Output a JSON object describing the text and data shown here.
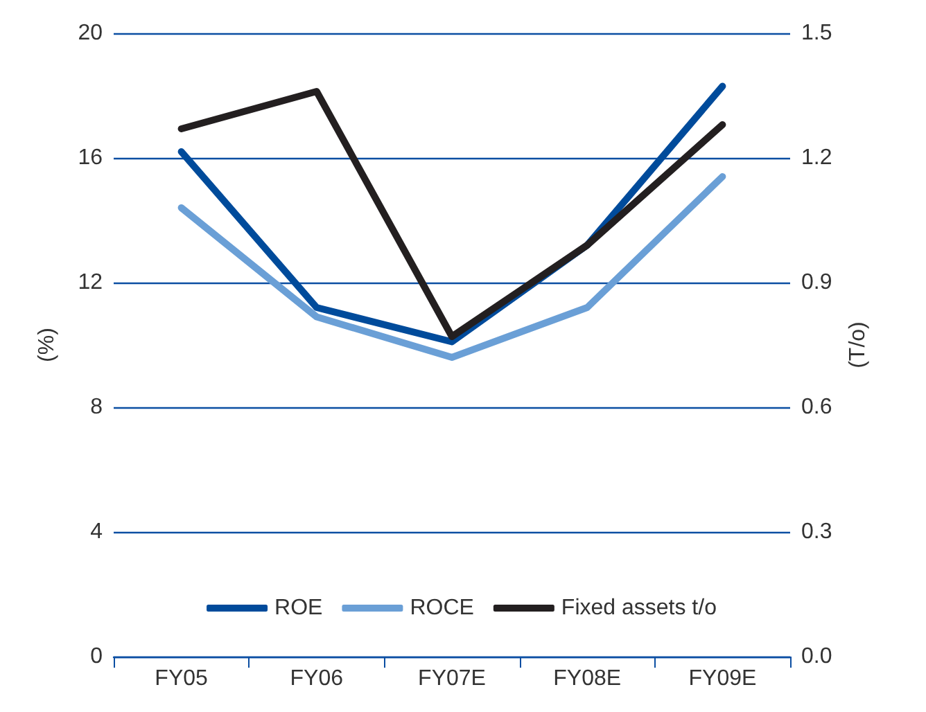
{
  "chart_data": {
    "type": "line",
    "ylabel": "(%)",
    "y2label": "(T/o)",
    "categories": [
      "FY05",
      "FY06",
      "FY07E",
      "FY08E",
      "FY09E"
    ],
    "series": [
      {
        "name": "ROE",
        "color": "#004b9b",
        "values": [
          16.2,
          11.2,
          10.1,
          13.2,
          18.3
        ]
      },
      {
        "name": "ROCE",
        "color": "#6a9fd6",
        "values": [
          14.4,
          10.9,
          9.6,
          11.2,
          15.4
        ]
      },
      {
        "name": "Fixed assets t/o",
        "color": "#231f20",
        "axis": "y2",
        "values": [
          1.27,
          1.36,
          0.77,
          0.99,
          1.28
        ]
      }
    ],
    "ylim": [
      0,
      20
    ],
    "yticks": [
      0,
      4,
      8,
      12,
      16,
      20
    ],
    "y2lim": [
      0,
      1.5
    ],
    "y2ticks": [
      {
        "value": 0,
        "label": "0.0"
      },
      0.3,
      0.6,
      0.9,
      1.2,
      1.5
    ],
    "grid": "y",
    "legend": "bottom",
    "marker": "none",
    "line_style": "solid"
  }
}
